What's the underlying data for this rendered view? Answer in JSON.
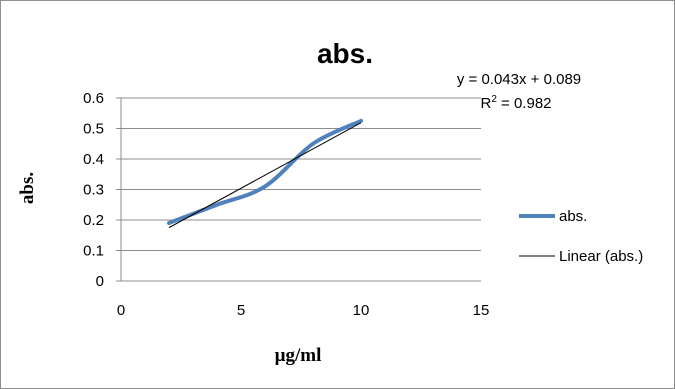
{
  "chart_data": {
    "type": "line",
    "title": "abs.",
    "xlabel": "µg/ml",
    "ylabel": "abs.",
    "xlim": [
      0,
      15
    ],
    "ylim": [
      0,
      0.6
    ],
    "x_ticks": [
      "0",
      "5",
      "10",
      "15"
    ],
    "y_ticks": [
      "0",
      "0.1",
      "0.2",
      "0.3",
      "0.4",
      "0.5",
      "0.6"
    ],
    "grid": "horizontal",
    "legend_position": "right",
    "series": [
      {
        "name": "abs.",
        "color": "#4f81bd",
        "x": [
          2,
          4,
          6,
          8,
          10
        ],
        "y": [
          0.19,
          0.25,
          0.31,
          0.45,
          0.525
        ]
      }
    ],
    "trendline": {
      "name": "Linear (abs.)",
      "color": "#000000",
      "x": [
        2,
        10
      ],
      "y": [
        0.175,
        0.519
      ],
      "equation": "y = 0.043x + 0.089",
      "r2_prefix": "R",
      "r2_sup": "2",
      "r2_value": " = 0.982"
    }
  }
}
